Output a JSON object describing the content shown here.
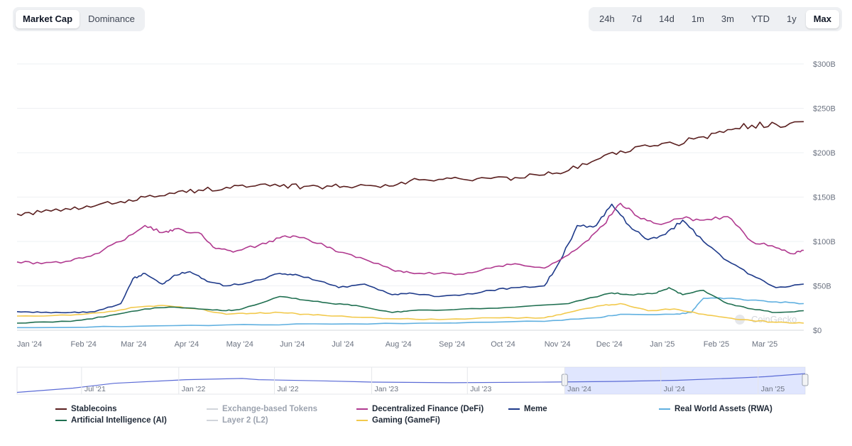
{
  "toolbar": {
    "view_tabs": [
      {
        "label": "Market Cap",
        "active": true
      },
      {
        "label": "Dominance",
        "active": false
      }
    ],
    "range_tabs": [
      {
        "label": "24h",
        "active": false
      },
      {
        "label": "7d",
        "active": false
      },
      {
        "label": "14d",
        "active": false
      },
      {
        "label": "1m",
        "active": false
      },
      {
        "label": "3m",
        "active": false
      },
      {
        "label": "YTD",
        "active": false
      },
      {
        "label": "1y",
        "active": false
      },
      {
        "label": "Max",
        "active": true
      }
    ]
  },
  "watermark": "CoinGecko",
  "chart_data": {
    "type": "line",
    "y_axis": {
      "ticks": [
        "$0",
        "$50B",
        "$100B",
        "$150B",
        "$200B",
        "$250B",
        "$300B"
      ],
      "range": [
        0,
        300
      ],
      "unit": "billion USD",
      "position": "right"
    },
    "x_axis": {
      "ticks": [
        "Jan '24",
        "Feb '24",
        "Mar '24",
        "Apr '24",
        "May '24",
        "Jun '24",
        "Jul '24",
        "Aug '24",
        "Sep '24",
        "Oct '24",
        "Nov '24",
        "Dec '24",
        "Jan '25",
        "Feb '25",
        "Mar '25"
      ],
      "range": [
        "2024-01-01",
        "2025-03-31"
      ]
    },
    "grid": true,
    "legend_position": "bottom",
    "navigator": {
      "ticks": [
        "Jul '21",
        "Jan '22",
        "Jul '22",
        "Jan '23",
        "Jul '23",
        "Jan '24",
        "Jul '24",
        "Jan '25"
      ],
      "range": [
        "2021-03-01",
        "2025-03-31"
      ],
      "selected": [
        "2024-01-01",
        "2025-03-31"
      ]
    },
    "series": [
      {
        "name": "Stablecoins",
        "color": "#5a1f1f",
        "visible": true,
        "points": [
          [
            "2024-01-01",
            131
          ],
          [
            "2024-01-15",
            133
          ],
          [
            "2024-02-01",
            136
          ],
          [
            "2024-02-15",
            140
          ],
          [
            "2024-03-01",
            145
          ],
          [
            "2024-03-15",
            150
          ],
          [
            "2024-04-01",
            154
          ],
          [
            "2024-04-15",
            158
          ],
          [
            "2024-05-01",
            161
          ],
          [
            "2024-05-15",
            162
          ],
          [
            "2024-06-01",
            162
          ],
          [
            "2024-06-15",
            162
          ],
          [
            "2024-07-01",
            162
          ],
          [
            "2024-07-15",
            162
          ],
          [
            "2024-08-01",
            164
          ],
          [
            "2024-08-15",
            168
          ],
          [
            "2024-09-01",
            170
          ],
          [
            "2024-09-15",
            170
          ],
          [
            "2024-10-01",
            171
          ],
          [
            "2024-10-15",
            172
          ],
          [
            "2024-11-01",
            175
          ],
          [
            "2024-11-15",
            180
          ],
          [
            "2024-12-01",
            192
          ],
          [
            "2024-12-15",
            202
          ],
          [
            "2025-01-01",
            207
          ],
          [
            "2025-01-15",
            210
          ],
          [
            "2025-02-01",
            218
          ],
          [
            "2025-02-15",
            226
          ],
          [
            "2025-03-01",
            231
          ],
          [
            "2025-03-15",
            232
          ],
          [
            "2025-03-31",
            235
          ]
        ]
      },
      {
        "name": "Exchange-based Tokens",
        "color": "#d1d5db",
        "visible": false,
        "points": []
      },
      {
        "name": "Decentralized Finance (DeFi)",
        "color": "#b0398f",
        "visible": true,
        "points": [
          [
            "2024-01-01",
            77
          ],
          [
            "2024-01-15",
            75
          ],
          [
            "2024-02-01",
            78
          ],
          [
            "2024-02-15",
            86
          ],
          [
            "2024-03-01",
            100
          ],
          [
            "2024-03-15",
            118
          ],
          [
            "2024-03-25",
            110
          ],
          [
            "2024-04-01",
            114
          ],
          [
            "2024-04-15",
            110
          ],
          [
            "2024-04-25",
            92
          ],
          [
            "2024-05-05",
            88
          ],
          [
            "2024-05-20",
            96
          ],
          [
            "2024-06-01",
            104
          ],
          [
            "2024-06-10",
            106
          ],
          [
            "2024-06-25",
            98
          ],
          [
            "2024-07-05",
            88
          ],
          [
            "2024-07-20",
            80
          ],
          [
            "2024-08-05",
            68
          ],
          [
            "2024-08-15",
            65
          ],
          [
            "2024-09-01",
            64
          ],
          [
            "2024-09-15",
            63
          ],
          [
            "2024-10-01",
            70
          ],
          [
            "2024-10-15",
            75
          ],
          [
            "2024-11-01",
            70
          ],
          [
            "2024-11-15",
            85
          ],
          [
            "2024-11-25",
            100
          ],
          [
            "2024-12-05",
            118
          ],
          [
            "2024-12-15",
            143
          ],
          [
            "2024-12-25",
            128
          ],
          [
            "2025-01-05",
            120
          ],
          [
            "2025-01-20",
            126
          ],
          [
            "2025-02-01",
            124
          ],
          [
            "2025-02-15",
            128
          ],
          [
            "2025-03-01",
            100
          ],
          [
            "2025-03-15",
            93
          ],
          [
            "2025-03-25",
            86
          ],
          [
            "2025-03-31",
            90
          ]
        ]
      },
      {
        "name": "Meme",
        "color": "#1e3a8a",
        "visible": true,
        "points": [
          [
            "2024-01-01",
            21
          ],
          [
            "2024-01-15",
            20
          ],
          [
            "2024-02-01",
            20
          ],
          [
            "2024-02-15",
            21
          ],
          [
            "2024-03-01",
            30
          ],
          [
            "2024-03-08",
            58
          ],
          [
            "2024-03-15",
            64
          ],
          [
            "2024-03-25",
            52
          ],
          [
            "2024-04-01",
            62
          ],
          [
            "2024-04-10",
            66
          ],
          [
            "2024-04-20",
            55
          ],
          [
            "2024-05-01",
            50
          ],
          [
            "2024-05-15",
            54
          ],
          [
            "2024-06-01",
            64
          ],
          [
            "2024-06-10",
            63
          ],
          [
            "2024-06-25",
            55
          ],
          [
            "2024-07-05",
            48
          ],
          [
            "2024-07-20",
            52
          ],
          [
            "2024-08-05",
            40
          ],
          [
            "2024-08-15",
            42
          ],
          [
            "2024-09-01",
            38
          ],
          [
            "2024-09-15",
            40
          ],
          [
            "2024-10-01",
            45
          ],
          [
            "2024-10-15",
            48
          ],
          [
            "2024-11-01",
            50
          ],
          [
            "2024-11-10",
            78
          ],
          [
            "2024-11-20",
            118
          ],
          [
            "2024-12-01",
            118
          ],
          [
            "2024-12-10",
            142
          ],
          [
            "2024-12-20",
            118
          ],
          [
            "2024-12-31",
            102
          ],
          [
            "2025-01-10",
            108
          ],
          [
            "2025-01-20",
            124
          ],
          [
            "2025-02-01",
            100
          ],
          [
            "2025-02-15",
            78
          ],
          [
            "2025-03-01",
            62
          ],
          [
            "2025-03-15",
            48
          ],
          [
            "2025-03-31",
            52
          ]
        ]
      },
      {
        "name": "Real World Assets (RWA)",
        "color": "#60b0e0",
        "visible": true,
        "points": [
          [
            "2024-01-01",
            3
          ],
          [
            "2024-03-01",
            4
          ],
          [
            "2024-05-01",
            6
          ],
          [
            "2024-07-01",
            7
          ],
          [
            "2024-09-01",
            8
          ],
          [
            "2024-11-01",
            10
          ],
          [
            "2024-12-01",
            14
          ],
          [
            "2024-12-15",
            18
          ],
          [
            "2025-01-15",
            18
          ],
          [
            "2025-01-25",
            20
          ],
          [
            "2025-02-01",
            36
          ],
          [
            "2025-02-15",
            36
          ],
          [
            "2025-03-01",
            34
          ],
          [
            "2025-03-15",
            32
          ],
          [
            "2025-03-31",
            30
          ]
        ]
      },
      {
        "name": "Artificial Intelligence (AI)",
        "color": "#1f6f50",
        "visible": true,
        "points": [
          [
            "2024-01-01",
            8
          ],
          [
            "2024-02-01",
            10
          ],
          [
            "2024-02-20",
            15
          ],
          [
            "2024-03-15",
            24
          ],
          [
            "2024-04-01",
            26
          ],
          [
            "2024-04-15",
            24
          ],
          [
            "2024-05-01",
            22
          ],
          [
            "2024-05-10",
            24
          ],
          [
            "2024-06-01",
            38
          ],
          [
            "2024-06-15",
            34
          ],
          [
            "2024-07-01",
            30
          ],
          [
            "2024-07-15",
            28
          ],
          [
            "2024-08-05",
            20
          ],
          [
            "2024-08-15",
            22
          ],
          [
            "2024-09-15",
            24
          ],
          [
            "2024-10-15",
            26
          ],
          [
            "2024-11-15",
            30
          ],
          [
            "2024-12-10",
            42
          ],
          [
            "2024-12-20",
            40
          ],
          [
            "2025-01-05",
            42
          ],
          [
            "2025-01-12",
            48
          ],
          [
            "2025-01-20",
            40
          ],
          [
            "2025-02-01",
            45
          ],
          [
            "2025-02-15",
            30
          ],
          [
            "2025-03-01",
            24
          ],
          [
            "2025-03-15",
            20
          ],
          [
            "2025-03-31",
            22
          ]
        ]
      },
      {
        "name": "Layer 2 (L2)",
        "color": "#d1d5db",
        "visible": false,
        "points": []
      },
      {
        "name": "Gaming (GameFi)",
        "color": "#f2c94c",
        "visible": true,
        "points": [
          [
            "2024-01-01",
            16
          ],
          [
            "2024-02-01",
            17
          ],
          [
            "2024-02-20",
            20
          ],
          [
            "2024-03-10",
            26
          ],
          [
            "2024-03-25",
            28
          ],
          [
            "2024-04-15",
            24
          ],
          [
            "2024-05-01",
            18
          ],
          [
            "2024-05-15",
            19
          ],
          [
            "2024-06-01",
            20
          ],
          [
            "2024-06-15",
            18
          ],
          [
            "2024-07-01",
            16
          ],
          [
            "2024-08-05",
            13
          ],
          [
            "2024-09-01",
            12
          ],
          [
            "2024-10-01",
            14
          ],
          [
            "2024-11-01",
            14
          ],
          [
            "2024-11-15",
            20
          ],
          [
            "2024-12-05",
            28
          ],
          [
            "2024-12-15",
            30
          ],
          [
            "2024-12-31",
            22
          ],
          [
            "2025-01-15",
            24
          ],
          [
            "2025-02-01",
            18
          ],
          [
            "2025-02-15",
            14
          ],
          [
            "2025-03-01",
            11
          ],
          [
            "2025-03-15",
            9
          ],
          [
            "2025-03-31",
            8
          ]
        ]
      }
    ],
    "navigator_series": [
      [
        "2021-03-01",
        3
      ],
      [
        "2021-06-15",
        10
      ],
      [
        "2021-09-01",
        18
      ],
      [
        "2022-01-15",
        24
      ],
      [
        "2022-05-01",
        26
      ],
      [
        "2022-06-01",
        24
      ],
      [
        "2022-10-01",
        22
      ],
      [
        "2023-01-01",
        20
      ],
      [
        "2023-06-01",
        19
      ],
      [
        "2023-12-01",
        20
      ],
      [
        "2024-04-01",
        21
      ],
      [
        "2024-08-01",
        23
      ],
      [
        "2024-12-01",
        27
      ],
      [
        "2025-01-15",
        29
      ],
      [
        "2025-03-31",
        34
      ]
    ]
  }
}
